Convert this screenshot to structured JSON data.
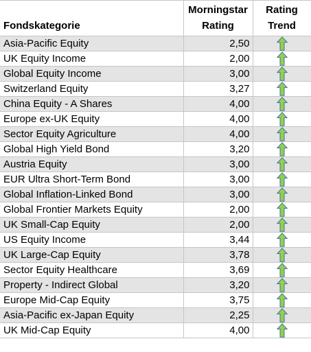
{
  "header": {
    "category": "Fondskategorie",
    "rating_line1": "Morningstar",
    "rating_line2": "Rating",
    "trend_line1": "Rating",
    "trend_line2": "Trend"
  },
  "rows": [
    {
      "category": "Asia-Pacific Equity",
      "rating": "2,50",
      "trend": "up-arrow-icon"
    },
    {
      "category": "UK Equity Income",
      "rating": "2,00",
      "trend": "up-arrow-icon"
    },
    {
      "category": "Global Equity Income",
      "rating": "3,00",
      "trend": "up-arrow-icon"
    },
    {
      "category": "Switzerland Equity",
      "rating": "3,27",
      "trend": "up-arrow-icon"
    },
    {
      "category": "China Equity - A Shares",
      "rating": "4,00",
      "trend": "up-arrow-icon"
    },
    {
      "category": "Europe ex-UK Equity",
      "rating": "4,00",
      "trend": "up-arrow-icon"
    },
    {
      "category": "Sector Equity Agriculture",
      "rating": "4,00",
      "trend": "up-arrow-icon"
    },
    {
      "category": "Global High Yield Bond",
      "rating": "3,20",
      "trend": "up-arrow-icon"
    },
    {
      "category": "Austria Equity",
      "rating": "3,00",
      "trend": "up-arrow-icon"
    },
    {
      "category": "EUR Ultra Short-Term Bond",
      "rating": "3,00",
      "trend": "up-arrow-icon"
    },
    {
      "category": "Global Inflation-Linked Bond",
      "rating": "3,00",
      "trend": "up-arrow-icon"
    },
    {
      "category": "Global Frontier Markets Equity",
      "rating": "2,00",
      "trend": "up-arrow-icon"
    },
    {
      "category": "UK Small-Cap Equity",
      "rating": "2,00",
      "trend": "up-arrow-icon"
    },
    {
      "category": "US Equity Income",
      "rating": "3,44",
      "trend": "up-arrow-icon"
    },
    {
      "category": "UK Large-Cap Equity",
      "rating": "3,78",
      "trend": "up-arrow-icon"
    },
    {
      "category": "Sector Equity Healthcare",
      "rating": "3,69",
      "trend": "up-arrow-icon"
    },
    {
      "category": "Property - Indirect Global",
      "rating": "3,20",
      "trend": "up-arrow-icon"
    },
    {
      "category": "Europe Mid-Cap Equity",
      "rating": "3,75",
      "trend": "up-arrow-icon"
    },
    {
      "category": "Asia-Pacific ex-Japan Equity",
      "rating": "2,25",
      "trend": "up-arrow-icon"
    },
    {
      "category": "UK Mid-Cap Equity",
      "rating": "4,00",
      "trend": "up-arrow-icon"
    }
  ],
  "colors": {
    "arrow_fill": "#92d050",
    "arrow_stroke": "#41719c",
    "band": "#e4e4e4",
    "grid": "#c6c6c6"
  }
}
